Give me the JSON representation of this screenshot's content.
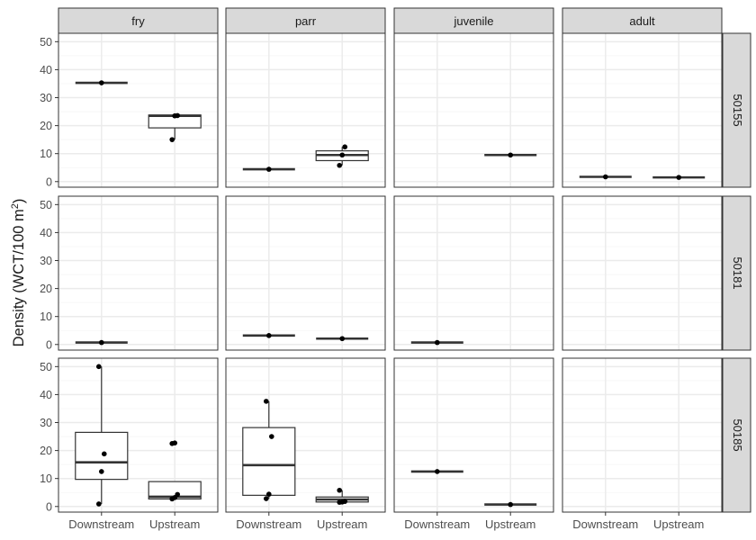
{
  "chart_data": {
    "type": "boxplot",
    "ylabel_main": "Density (WCT/100 m",
    "ylabel_sup": "2",
    "ylabel_close": ")",
    "ylim": [
      -2,
      53
    ],
    "yticks": [
      0,
      10,
      20,
      30,
      40,
      50
    ],
    "categories": [
      "Downstream",
      "Upstream"
    ],
    "col_facets": [
      "fry",
      "parr",
      "juvenile",
      "adult"
    ],
    "row_facets": [
      "50155",
      "50181",
      "50185"
    ],
    "panels": [
      {
        "row": "50155",
        "col": "fry",
        "groups": [
          {
            "category": "Downstream",
            "q1": 35.3,
            "median": 35.3,
            "q3": 35.3,
            "whisker_low": 35.3,
            "whisker_high": 35.3,
            "points": [
              35.3
            ]
          },
          {
            "category": "Upstream",
            "q1": 19.2,
            "median": 23.5,
            "q3": 23.8,
            "whisker_low": 15.0,
            "whisker_high": 23.8,
            "points": [
              15.0,
              23.5,
              23.6
            ]
          }
        ]
      },
      {
        "row": "50155",
        "col": "parr",
        "groups": [
          {
            "category": "Downstream",
            "q1": 4.4,
            "median": 4.4,
            "q3": 4.4,
            "whisker_low": 4.4,
            "whisker_high": 4.4,
            "points": [
              4.4
            ]
          },
          {
            "category": "Upstream",
            "q1": 7.5,
            "median": 9.5,
            "q3": 11.0,
            "whisker_low": 5.8,
            "whisker_high": 12.4,
            "points": [
              5.8,
              9.5,
              12.4
            ]
          }
        ]
      },
      {
        "row": "50155",
        "col": "juvenile",
        "groups": [
          {
            "category": "Upstream",
            "q1": 9.5,
            "median": 9.5,
            "q3": 9.5,
            "whisker_low": 9.5,
            "whisker_high": 9.5,
            "points": [
              9.5
            ]
          }
        ]
      },
      {
        "row": "50155",
        "col": "adult",
        "groups": [
          {
            "category": "Downstream",
            "q1": 1.7,
            "median": 1.7,
            "q3": 1.7,
            "whisker_low": 1.7,
            "whisker_high": 1.7,
            "points": [
              1.7
            ]
          },
          {
            "category": "Upstream",
            "q1": 1.5,
            "median": 1.5,
            "q3": 1.5,
            "whisker_low": 1.5,
            "whisker_high": 1.5,
            "points": [
              1.5
            ]
          }
        ]
      },
      {
        "row": "50181",
        "col": "fry",
        "groups": [
          {
            "category": "Downstream",
            "q1": 0.7,
            "median": 0.7,
            "q3": 0.7,
            "whisker_low": 0.7,
            "whisker_high": 0.7,
            "points": [
              0.7
            ]
          }
        ]
      },
      {
        "row": "50181",
        "col": "parr",
        "groups": [
          {
            "category": "Downstream",
            "q1": 3.2,
            "median": 3.2,
            "q3": 3.2,
            "whisker_low": 3.2,
            "whisker_high": 3.2,
            "points": [
              3.2
            ]
          },
          {
            "category": "Upstream",
            "q1": 2.1,
            "median": 2.1,
            "q3": 2.1,
            "whisker_low": 2.1,
            "whisker_high": 2.1,
            "points": [
              2.1
            ]
          }
        ]
      },
      {
        "row": "50181",
        "col": "juvenile",
        "groups": [
          {
            "category": "Downstream",
            "q1": 0.7,
            "median": 0.7,
            "q3": 0.7,
            "whisker_low": 0.7,
            "whisker_high": 0.7,
            "points": [
              0.7
            ]
          }
        ]
      },
      {
        "row": "50181",
        "col": "adult",
        "groups": []
      },
      {
        "row": "50185",
        "col": "fry",
        "groups": [
          {
            "category": "Downstream",
            "q1": 9.7,
            "median": 15.8,
            "q3": 26.5,
            "whisker_low": 0.9,
            "whisker_high": 50.0,
            "points": [
              0.9,
              12.5,
              18.8,
              50.0
            ]
          },
          {
            "category": "Upstream",
            "q1": 2.7,
            "median": 3.5,
            "q3": 8.9,
            "whisker_low": 2.7,
            "whisker_high": 8.9,
            "points": [
              2.7,
              3.2,
              4.3,
              22.5,
              22.7
            ]
          }
        ]
      },
      {
        "row": "50185",
        "col": "parr",
        "groups": [
          {
            "category": "Downstream",
            "q1": 4.0,
            "median": 14.8,
            "q3": 28.2,
            "whisker_low": 2.8,
            "whisker_high": 37.6,
            "points": [
              2.8,
              4.4,
              25.0,
              37.6
            ]
          },
          {
            "category": "Upstream",
            "q1": 1.6,
            "median": 2.5,
            "q3": 3.4,
            "whisker_low": 1.5,
            "whisker_high": 5.8,
            "points": [
              1.5,
              1.6,
              1.8,
              5.8
            ]
          }
        ]
      },
      {
        "row": "50185",
        "col": "juvenile",
        "groups": [
          {
            "category": "Downstream",
            "q1": 12.5,
            "median": 12.5,
            "q3": 12.5,
            "whisker_low": 12.5,
            "whisker_high": 12.5,
            "points": [
              12.5
            ]
          },
          {
            "category": "Upstream",
            "q1": 0.7,
            "median": 0.7,
            "q3": 0.7,
            "whisker_low": 0.7,
            "whisker_high": 0.7,
            "points": [
              0.7
            ]
          }
        ]
      },
      {
        "row": "50185",
        "col": "adult",
        "groups": []
      }
    ],
    "grid": true,
    "legend": "none"
  },
  "colors": {
    "background": "#ffffff",
    "panel_border": "#333333",
    "strip_fill": "#d9d9d9",
    "grid_major": "#ebebeb",
    "grid_minor": "#f5f5f5",
    "box_line": "#333333",
    "point": "#000000",
    "text": "#1a1a1a",
    "tick_text": "#4d4d4d"
  }
}
